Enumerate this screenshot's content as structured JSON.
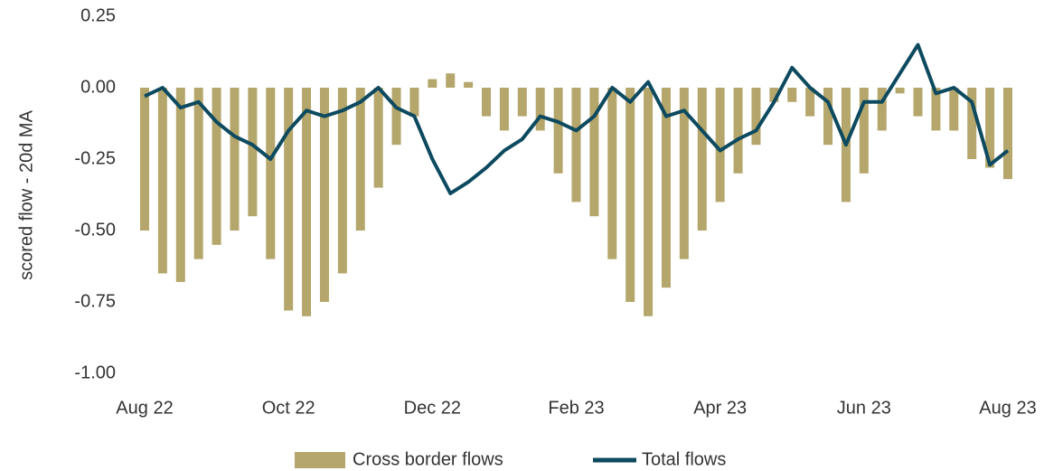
{
  "chart_data": {
    "type": "bar-line",
    "y_label": "scored flow - 20d MA",
    "categories": [
      "Aug 22",
      null,
      null,
      null,
      null,
      null,
      null,
      null,
      "Oct 22",
      null,
      null,
      null,
      null,
      null,
      null,
      null,
      "Dec 22",
      null,
      null,
      null,
      null,
      null,
      null,
      null,
      "Feb 23",
      null,
      null,
      null,
      null,
      null,
      null,
      null,
      "Apr 23",
      null,
      null,
      null,
      null,
      null,
      null,
      null,
      "Jun 23",
      null,
      null,
      null,
      null,
      null,
      null,
      null,
      "Aug 23"
    ],
    "series": [
      {
        "name": "Cross border flows",
        "type": "bar",
        "color": "#b5a66b",
        "values": [
          -0.5,
          -0.65,
          -0.68,
          -0.6,
          -0.55,
          -0.5,
          -0.45,
          -0.6,
          -0.78,
          -0.8,
          -0.75,
          -0.65,
          -0.5,
          -0.35,
          -0.2,
          -0.1,
          0.03,
          0.05,
          0.02,
          -0.1,
          -0.15,
          -0.1,
          -0.15,
          -0.3,
          -0.4,
          -0.45,
          -0.6,
          -0.75,
          -0.8,
          -0.7,
          -0.6,
          -0.5,
          -0.4,
          -0.3,
          -0.2,
          -0.05,
          -0.05,
          -0.1,
          -0.2,
          -0.4,
          -0.3,
          -0.15,
          -0.02,
          -0.1,
          -0.15,
          -0.15,
          -0.25,
          -0.28,
          -0.32
        ]
      },
      {
        "name": "Total flows",
        "type": "line",
        "color": "#0d4a60",
        "values": [
          -0.03,
          0.0,
          -0.07,
          -0.05,
          -0.12,
          -0.17,
          -0.2,
          -0.25,
          -0.15,
          -0.08,
          -0.1,
          -0.08,
          -0.05,
          0.0,
          -0.07,
          -0.1,
          -0.25,
          -0.37,
          -0.33,
          -0.28,
          -0.22,
          -0.18,
          -0.1,
          -0.12,
          -0.15,
          -0.1,
          0.0,
          -0.05,
          0.02,
          -0.1,
          -0.08,
          -0.15,
          -0.22,
          -0.18,
          -0.15,
          -0.05,
          0.07,
          0.0,
          -0.05,
          -0.2,
          -0.05,
          -0.05,
          0.05,
          0.15,
          -0.02,
          0.0,
          -0.05,
          -0.27,
          -0.22
        ]
      }
    ],
    "ylim": [
      -1.0,
      0.25
    ],
    "yticks": [
      0.25,
      {
        "value": 0,
        "label": "0.00"
      },
      -0.25,
      {
        "value": -0.5,
        "label": "-0.50"
      },
      -0.75,
      {
        "value": -1.0,
        "label": "-1.00"
      }
    ],
    "legend": "bottom"
  }
}
